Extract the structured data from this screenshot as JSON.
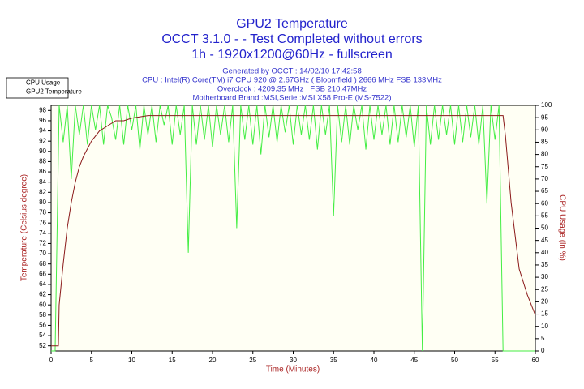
{
  "chart_data": {
    "type": "line",
    "title_lines": [
      "GPU2 Temperature",
      "OCCT 3.1.0 -  - Test Completed without errors",
      "1h - 1920x1200@60Hz - fullscreen"
    ],
    "info_lines": [
      "Generated by OCCT : 14/02/10 17:42:58",
      "CPU : Intel(R) Core(TM) i7 CPU 920 @ 2.67GHz ( Bloomfield ) 2666 MHz FSB 133MHz",
      "Overclock : 4209.35 MHz ; FSB 210.47MHz",
      "Motherboard Brand :MSI,Serie :MSI X58 Pro-E (MS-7522)"
    ],
    "xlabel": "Time (Minutes)",
    "ylabel": "Temperature (Celsius degree)",
    "y2label": "CPU Usage (in %)",
    "xlim": [
      0,
      60
    ],
    "xticks": [
      0,
      5,
      10,
      15,
      20,
      25,
      30,
      35,
      40,
      45,
      50,
      55,
      60
    ],
    "ylim": [
      51,
      99
    ],
    "yticks": [
      52,
      54,
      56,
      58,
      60,
      62,
      64,
      66,
      68,
      70,
      72,
      74,
      76,
      78,
      80,
      82,
      84,
      86,
      88,
      90,
      92,
      94,
      96,
      98
    ],
    "y2lim": [
      0,
      100
    ],
    "y2ticks": [
      0,
      5,
      10,
      15,
      20,
      25,
      30,
      35,
      40,
      45,
      50,
      55,
      60,
      65,
      70,
      75,
      80,
      85,
      90,
      95,
      100
    ],
    "legend": "top-left",
    "series": [
      {
        "name": "CPU Usage",
        "color": "#44ee44",
        "axis": "y2",
        "x": [
          0,
          0.5,
          1,
          1.5,
          2,
          2.5,
          3,
          3.5,
          4,
          4.5,
          5,
          5.5,
          6,
          6.5,
          7,
          7.5,
          8,
          8.5,
          9,
          9.5,
          10,
          10.5,
          11,
          11.5,
          12,
          12.5,
          13,
          13.5,
          14,
          14.5,
          15,
          15.5,
          16,
          16.5,
          17,
          17.5,
          18,
          18.5,
          19,
          19.5,
          20,
          20.5,
          21,
          21.5,
          22,
          22.5,
          23,
          23.5,
          24,
          24.5,
          25,
          25.5,
          26,
          26.5,
          27,
          27.5,
          28,
          28.5,
          29,
          29.5,
          30,
          30.5,
          31,
          31.5,
          32,
          32.5,
          33,
          33.5,
          34,
          34.5,
          35,
          35.5,
          36,
          36.5,
          37,
          37.5,
          38,
          38.5,
          39,
          39.5,
          40,
          40.5,
          41,
          41.5,
          42,
          42.5,
          43,
          43.5,
          44,
          44.5,
          45,
          45.5,
          46,
          46.5,
          47,
          47.5,
          48,
          48.5,
          49,
          49.5,
          50,
          50.5,
          51,
          51.5,
          52,
          52.5,
          53,
          53.5,
          54,
          54.5,
          55,
          55.5,
          56,
          56.5,
          57,
          57.5,
          58,
          58.5,
          59,
          59.5,
          60
        ],
        "values": [
          0,
          0,
          100,
          85,
          100,
          70,
          100,
          88,
          100,
          84,
          100,
          90,
          100,
          84,
          100,
          95,
          86,
          100,
          84,
          100,
          90,
          100,
          82,
          100,
          88,
          100,
          85,
          100,
          92,
          100,
          84,
          100,
          88,
          100,
          40,
          100,
          84,
          100,
          86,
          100,
          83,
          100,
          88,
          100,
          85,
          100,
          50,
          100,
          86,
          100,
          84,
          100,
          80,
          100,
          87,
          100,
          85,
          100,
          89,
          100,
          84,
          100,
          88,
          100,
          86,
          100,
          82,
          100,
          88,
          100,
          55,
          100,
          85,
          100,
          84,
          100,
          90,
          100,
          82,
          100,
          86,
          100,
          88,
          100,
          84,
          100,
          85,
          100,
          87,
          100,
          83,
          100,
          0,
          100,
          84,
          100,
          86,
          100,
          88,
          100,
          84,
          100,
          85,
          100,
          87,
          100,
          84,
          100,
          60,
          100,
          86,
          100,
          0,
          0,
          0,
          0,
          0,
          0,
          0,
          0,
          0
        ]
      },
      {
        "name": "GPU2 Temperature",
        "color": "#8b1a1a",
        "x": [
          0,
          0.9,
          1,
          1.5,
          2,
          2.5,
          3,
          3.5,
          4,
          5,
          6,
          7,
          8,
          9,
          10,
          12,
          15,
          20,
          25,
          30,
          35,
          40,
          45,
          50,
          55,
          56,
          56.3,
          57,
          58,
          59,
          60
        ],
        "values": [
          52,
          52,
          60,
          68,
          75,
          80,
          84,
          87,
          89,
          92,
          94,
          95,
          96,
          96,
          96.5,
          97,
          97,
          97,
          97,
          97,
          97,
          97,
          97,
          97,
          97,
          97,
          93,
          80,
          67,
          62,
          58
        ]
      }
    ]
  }
}
